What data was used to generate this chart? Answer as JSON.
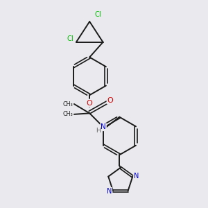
{
  "background_color": "#eaeaee",
  "bond_color": "#1a1a1a",
  "atom_colors": {
    "Cl": "#00bb00",
    "O": "#cc0000",
    "N": "#0000cc",
    "C": "#1a1a1a",
    "H": "#606060"
  },
  "figsize": [
    3.0,
    3.0
  ],
  "dpi": 100
}
